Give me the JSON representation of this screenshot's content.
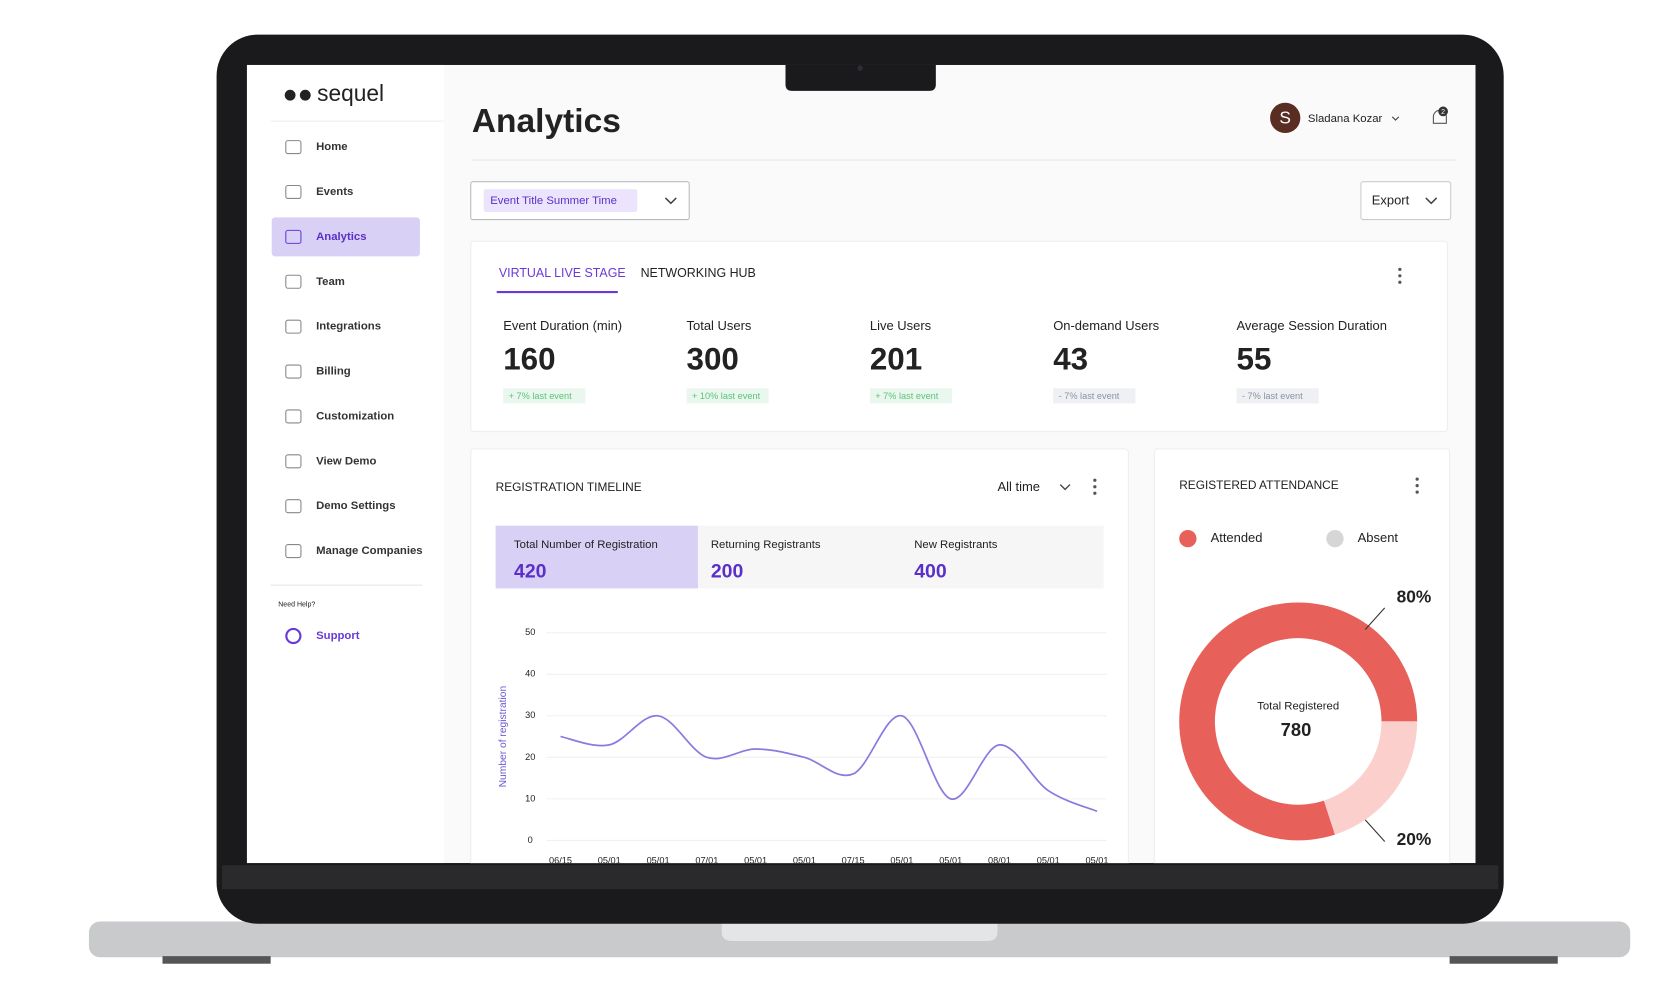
{
  "sidebar": {
    "logo": "sequel",
    "nav": [
      "Home",
      "Events",
      "Analytics",
      "Team",
      "Integrations",
      "Billing",
      "Customization",
      "View Demo",
      "Demo Settings",
      "Manage Companies"
    ],
    "help": "Need Help?",
    "support": "Support"
  },
  "header": {
    "title": "Analytics",
    "user_initial": "S",
    "user_name": "Sladana Kozar",
    "notifications": 2
  },
  "filter": "Event Title Summer Time",
  "export": "Export",
  "tabs": [
    "VIRTUAL LIVE STAGE",
    "NETWORKING HUB"
  ],
  "stats": [
    {
      "label": "Event Duration (min)",
      "value": 160,
      "change": "+ 7% last event"
    },
    {
      "label": "Total Users",
      "value": 300,
      "change": "+ 10% last event"
    },
    {
      "label": "Live Users",
      "value": 201,
      "change": "+ 7% last event"
    },
    {
      "label": "On-demand Users",
      "value": 43,
      "change": "- 7% last event"
    },
    {
      "label": "Average Session Duration",
      "value": 55,
      "change": "- 7% last event"
    }
  ],
  "timeline": {
    "title": "REGISTRATION TIMELINE",
    "range": "All time",
    "cards": [
      {
        "label": "Total Number of Registration",
        "value": 420
      },
      {
        "label": "Returning Registrants",
        "value": 200
      },
      {
        "label": "New Registrants",
        "value": 400
      }
    ],
    "chart": {
      "type": "line",
      "y_label": "Number of registration",
      "categories": [
        "06/15",
        "05/01",
        "05/01",
        "07/01",
        "05/01",
        "05/01",
        "07/15",
        "05/01",
        "05/01",
        "08/01",
        "05/01",
        "05/01"
      ],
      "values": [
        25,
        23,
        30,
        20,
        22,
        20,
        16,
        30,
        10,
        23,
        12,
        7
      ],
      "color": "#8b7ae0",
      "ylim": [
        0,
        50
      ],
      "yticks": [
        0,
        10,
        20,
        30,
        40,
        50
      ],
      "grid": true
    }
  },
  "attendance": {
    "title": "REGISTERED ATTENDANCE",
    "center_label": "Total Registered",
    "total": 780,
    "chart": {
      "type": "pie",
      "categories": [
        "Attended",
        "Absent"
      ],
      "values": [
        80,
        20
      ],
      "value_labels": [
        "80%",
        "20%"
      ],
      "colors": [
        "#e8605a",
        "#fbd0cc"
      ],
      "legend_colors": [
        "#e8605a",
        "#d6d6d6"
      ]
    }
  }
}
